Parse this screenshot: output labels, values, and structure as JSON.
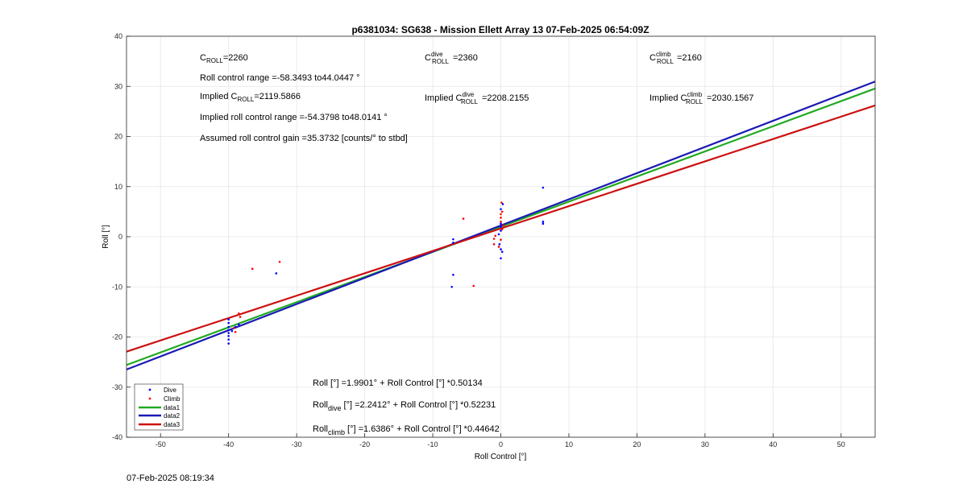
{
  "footer": {
    "timestamp": "07-Feb-2025 08:19:34"
  },
  "chart_data": {
    "type": "scatter",
    "title": "p6381034: SG638 - Mission Ellett Array 13 07-Feb-2025 06:54:09Z",
    "xlabel": "Roll Control [°]",
    "ylabel": "Roll [°]",
    "xlim": [
      -55,
      55
    ],
    "ylim": [
      -40,
      40
    ],
    "xticks": [
      -50,
      -40,
      -30,
      -20,
      -10,
      0,
      10,
      20,
      30,
      40,
      50
    ],
    "yticks": [
      -40,
      -30,
      -20,
      -10,
      0,
      10,
      20,
      30,
      40
    ],
    "grid": true,
    "legend_position": "bottom-left",
    "colors": {
      "dive": "#0000ff",
      "climb": "#ff0000",
      "data1": "#22aa22",
      "data2": "#1a1ab4",
      "data3": "#cc1111"
    },
    "series": [
      {
        "name": "Dive",
        "kind": "points",
        "color": "#0000ff",
        "points": [
          [
            -40,
            -16.5
          ],
          [
            -40,
            -17.2
          ],
          [
            -40,
            -18
          ],
          [
            -40,
            -18.6
          ],
          [
            -40,
            -19.2
          ],
          [
            -40,
            -19.8
          ],
          [
            -40,
            -20.5
          ],
          [
            -40,
            -21.3
          ],
          [
            -39.5,
            -18.8
          ],
          [
            -39,
            -18
          ],
          [
            -38.5,
            -17.5
          ],
          [
            -33,
            -7.3
          ],
          [
            -7,
            -0.5
          ],
          [
            -7,
            -1.2
          ],
          [
            -7,
            -7.6
          ],
          [
            -7.2,
            -10
          ],
          [
            -0.3,
            0.5
          ],
          [
            0,
            1.2
          ],
          [
            0,
            2
          ],
          [
            0,
            2.6
          ],
          [
            -0.2,
            -1.5
          ],
          [
            0,
            -2.5
          ],
          [
            0.2,
            -3
          ],
          [
            0,
            -4.3
          ],
          [
            0,
            5.5
          ],
          [
            0.3,
            6.5
          ],
          [
            6.2,
            9.8
          ],
          [
            6.2,
            3
          ],
          [
            6.2,
            2.6
          ]
        ]
      },
      {
        "name": "Climb",
        "kind": "points",
        "color": "#ff0000",
        "points": [
          [
            -36.5,
            -6.4
          ],
          [
            -32.5,
            -5
          ],
          [
            -38.5,
            -15.3
          ],
          [
            -38.3,
            -16
          ],
          [
            -39,
            -19
          ],
          [
            -39.2,
            -18.2
          ],
          [
            -4,
            -9.8
          ],
          [
            -5.5,
            3.6
          ],
          [
            -1,
            -0.4
          ],
          [
            -1,
            -1.5
          ],
          [
            -0.8,
            0.2
          ],
          [
            0,
            3
          ],
          [
            0,
            3.8
          ],
          [
            0,
            4.5
          ],
          [
            0.2,
            5
          ],
          [
            0.1,
            6.8
          ],
          [
            -0.3,
            -2
          ],
          [
            0,
            -0.6
          ],
          [
            0.2,
            1.5
          ],
          [
            0.4,
            2.3
          ]
        ]
      },
      {
        "name": "data1",
        "kind": "line",
        "color": "#22aa22",
        "intercept": 1.9901,
        "slope": 0.50134
      },
      {
        "name": "data2",
        "kind": "line",
        "color": "#1a1ab4",
        "intercept": 2.2412,
        "slope": 0.52231
      },
      {
        "name": "data3",
        "kind": "line",
        "color": "#cc1111",
        "intercept": 1.6386,
        "slope": 0.44642
      }
    ],
    "annotations": {
      "croll": {
        "sym": "C",
        "sub": "ROLL",
        "value": "=2260"
      },
      "croll_dive": {
        "sym": "C",
        "sup": "dive",
        "sub": "ROLL",
        "value": "=2360"
      },
      "croll_climb": {
        "sym": "C",
        "sup": "climb",
        "sub": "ROLL",
        "value": "=2160"
      },
      "roll_range": "Roll control range =-58.3493 to44.0447 °",
      "implied_croll": {
        "prefix": "Implied C",
        "sub": "ROLL",
        "value": "=2119.5866"
      },
      "implied_croll_dive": {
        "prefix": "Implied C",
        "sup": "dive",
        "sub": "ROLL",
        "value": "=2208.2155"
      },
      "implied_croll_climb": {
        "prefix": "Implied C",
        "sup": "climb",
        "sub": "ROLL",
        "value": "=2030.1567"
      },
      "implied_range": "Implied roll control range =-54.3798 to48.0141 °",
      "gain": "Assumed roll control gain =35.3732 [counts/° to stbd]",
      "fit_all": "Roll [°] =1.9901° + Roll Control [°] *0.50134",
      "fit_dive": {
        "prefix": "Roll",
        "sub": "dive",
        "rest": " [°] =2.2412° + Roll Control [°] *0.52231"
      },
      "fit_climb": {
        "prefix": "Roll",
        "sub": "climb",
        "rest": " [°] =1.6386° + Roll Control [°] *0.44642"
      }
    }
  }
}
